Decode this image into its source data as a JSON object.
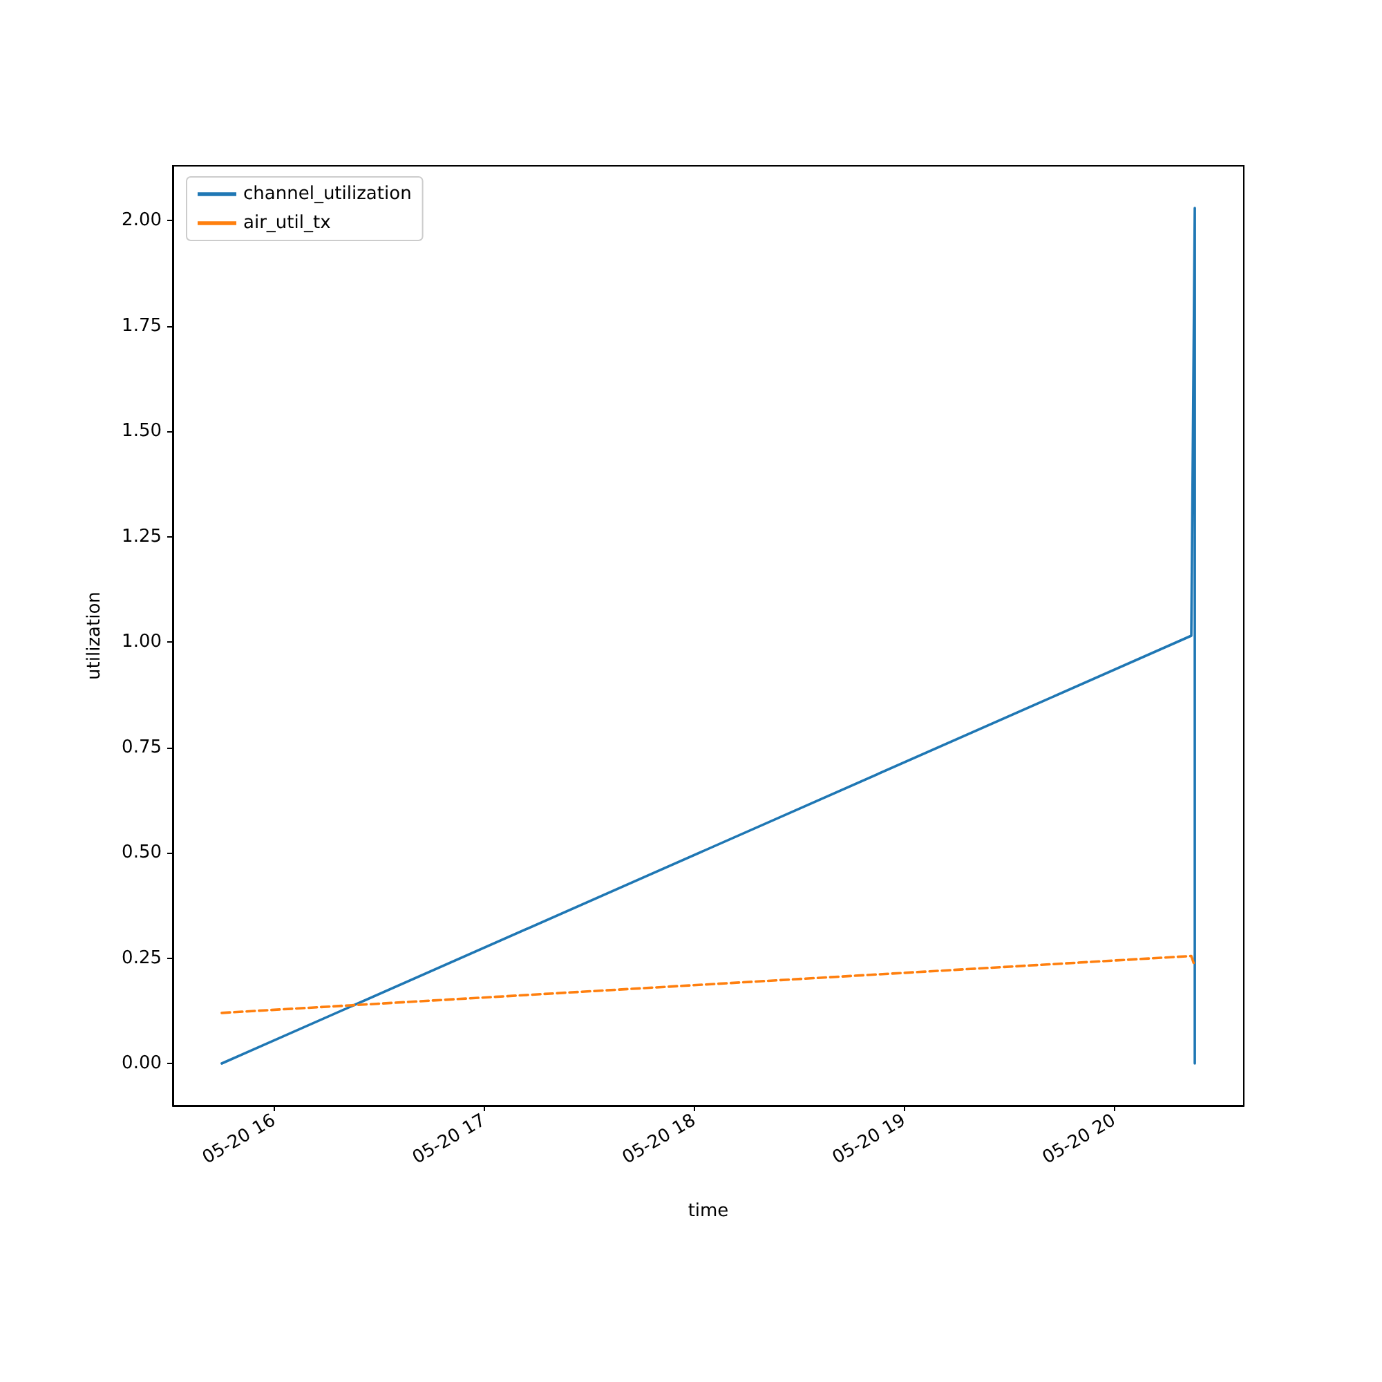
{
  "chart_data": {
    "type": "line",
    "xlabel": "time",
    "ylabel": "utilization",
    "series": [
      {
        "name": "channel_utilization",
        "color": "#1f77b4",
        "line_style": "solid",
        "x": [
          "--05-20T15:45",
          "--05-20T20:22",
          "--05-20T20:23",
          "--05-20T20:23"
        ],
        "values": [
          0,
          1.015,
          2.03,
          0
        ]
      },
      {
        "name": "air_util_tx",
        "color": "#ff7f0e",
        "line_style": "dashed",
        "x": [
          "--05-20T15:45",
          "--05-20T20:22",
          "--05-20T20:23"
        ],
        "values": [
          0.12,
          0.255,
          0.23
        ]
      }
    ],
    "xlim": [
      "--05-20T15:31",
      "--05-20T20:37"
    ],
    "xticks": [
      {
        "value": "--05-20T16:00",
        "label": "05-20 16"
      },
      {
        "value": "--05-20T17:00",
        "label": "05-20 17"
      },
      {
        "value": "--05-20T18:00",
        "label": "05-20 18"
      },
      {
        "value": "--05-20T19:00",
        "label": "05-20 19"
      },
      {
        "value": "--05-20T20:00",
        "label": "05-20 20"
      }
    ],
    "ylim": [
      -0.1,
      2.13
    ],
    "yticks": [
      {
        "value": 0,
        "label": "0.00"
      },
      {
        "value": 0.25,
        "label": "0.25"
      },
      {
        "value": 0.5,
        "label": "0.50"
      },
      {
        "value": 0.75,
        "label": "0.75"
      },
      {
        "value": 1,
        "label": "1.00"
      },
      {
        "value": 1.25,
        "label": "1.25"
      },
      {
        "value": 1.5,
        "label": "1.50"
      },
      {
        "value": 1.75,
        "label": "1.75"
      },
      {
        "value": 2,
        "label": "2.00"
      }
    ],
    "legend": "top left",
    "grid": false,
    "marker": "none"
  }
}
